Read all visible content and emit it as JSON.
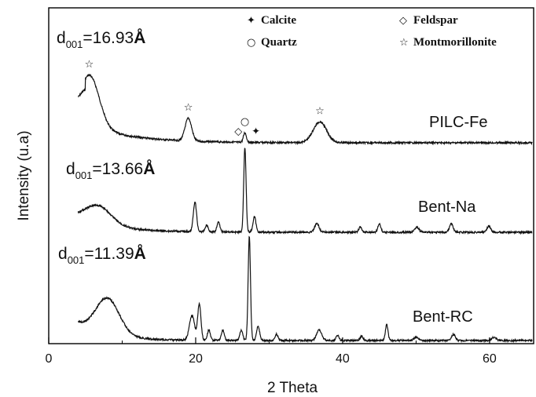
{
  "chart_data": {
    "type": "line",
    "xlabel": "2 Theta",
    "ylabel": "Intensity (u.a)",
    "xlim": [
      0,
      66
    ],
    "xticks": [
      0,
      20,
      40,
      60
    ],
    "y_ticks_shown": false,
    "legend": [
      {
        "marker": "calcite-icon",
        "glyph": "✦",
        "label": "Calcite"
      },
      {
        "marker": "feldspar-icon",
        "glyph": "◇",
        "label": "Feldspar"
      },
      {
        "marker": "quartz-icon",
        "glyph": "○",
        "label": "Quartz"
      },
      {
        "marker": "montmorillonite-icon",
        "glyph": "☆",
        "label": "Montmorillonite"
      }
    ],
    "series": [
      {
        "name": "PILC-Fe",
        "spacing_label": {
          "prefix": "d",
          "subscript": "001",
          "value": "=16.93",
          "unit": "Å"
        },
        "peaks": [
          {
            "x": 5.6,
            "h": 0.85,
            "w": 1.3
          },
          {
            "x": 19.0,
            "h": 0.38,
            "w": 0.45
          },
          {
            "x": 26.7,
            "h": 0.16,
            "w": 0.2
          },
          {
            "x": 36.9,
            "h": 0.35,
            "w": 0.9
          }
        ],
        "markers": [
          {
            "x": 5.5,
            "icon": "montmorillonite-icon"
          },
          {
            "x": 19.0,
            "icon": "montmorillonite-icon"
          },
          {
            "x": 25.8,
            "icon": "feldspar-icon"
          },
          {
            "x": 26.7,
            "icon": "quartz-icon"
          },
          {
            "x": 28.2,
            "icon": "calcite-icon"
          },
          {
            "x": 36.9,
            "icon": "montmorillonite-icon"
          }
        ]
      },
      {
        "name": "Bent-Na",
        "spacing_label": {
          "prefix": "d",
          "subscript": "001",
          "value": "=13.66",
          "unit": "Å"
        },
        "peaks": [
          {
            "x": 6.7,
            "h": 0.22,
            "w": 1.8
          },
          {
            "x": 19.9,
            "h": 0.35,
            "w": 0.22
          },
          {
            "x": 21.5,
            "h": 0.08,
            "w": 0.2
          },
          {
            "x": 23.1,
            "h": 0.12,
            "w": 0.2
          },
          {
            "x": 26.7,
            "h": 1.0,
            "w": 0.16
          },
          {
            "x": 28.0,
            "h": 0.18,
            "w": 0.2
          },
          {
            "x": 36.5,
            "h": 0.1,
            "w": 0.3
          },
          {
            "x": 42.4,
            "h": 0.06,
            "w": 0.2
          },
          {
            "x": 45.0,
            "h": 0.1,
            "w": 0.2
          },
          {
            "x": 50.1,
            "h": 0.06,
            "w": 0.3
          },
          {
            "x": 54.8,
            "h": 0.1,
            "w": 0.25
          },
          {
            "x": 59.9,
            "h": 0.07,
            "w": 0.25
          }
        ]
      },
      {
        "name": "Bent-RC",
        "spacing_label": {
          "prefix": "d",
          "subscript": "001",
          "value": "=11.39",
          "unit": "Å"
        },
        "peaks": [
          {
            "x": 8.0,
            "h": 0.35,
            "w": 1.6
          },
          {
            "x": 19.5,
            "h": 0.24,
            "w": 0.35
          },
          {
            "x": 20.5,
            "h": 0.35,
            "w": 0.22
          },
          {
            "x": 21.8,
            "h": 0.1,
            "w": 0.2
          },
          {
            "x": 23.7,
            "h": 0.1,
            "w": 0.2
          },
          {
            "x": 26.2,
            "h": 0.1,
            "w": 0.2
          },
          {
            "x": 27.3,
            "h": 1.0,
            "w": 0.16
          },
          {
            "x": 28.5,
            "h": 0.14,
            "w": 0.2
          },
          {
            "x": 31.0,
            "h": 0.06,
            "w": 0.2
          },
          {
            "x": 36.8,
            "h": 0.1,
            "w": 0.35
          },
          {
            "x": 39.3,
            "h": 0.05,
            "w": 0.2
          },
          {
            "x": 42.6,
            "h": 0.04,
            "w": 0.2
          },
          {
            "x": 46.0,
            "h": 0.15,
            "w": 0.18
          },
          {
            "x": 50.0,
            "h": 0.03,
            "w": 0.3
          },
          {
            "x": 55.1,
            "h": 0.06,
            "w": 0.25
          },
          {
            "x": 60.6,
            "h": 0.03,
            "w": 0.3
          }
        ]
      }
    ]
  }
}
